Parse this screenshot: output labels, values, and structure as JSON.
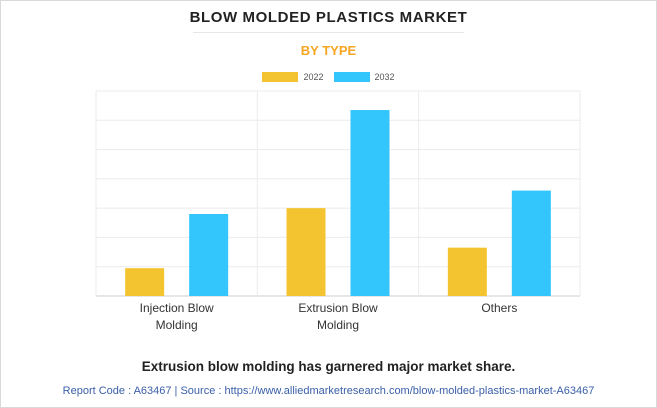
{
  "chart_data": {
    "type": "bar",
    "title": "BLOW MOLDED PLASTICS MARKET",
    "subtitle": "BY TYPE",
    "categories": [
      "Injection Blow Molding",
      "Extrusion Blow Molding",
      "Others"
    ],
    "category_lines": [
      [
        "Injection Blow",
        "Molding"
      ],
      [
        "Extrusion Blow",
        "Molding"
      ],
      [
        "Others"
      ]
    ],
    "series": [
      {
        "name": "2022",
        "color": "#f4c430",
        "values": [
          0.95,
          3.0,
          1.65
        ]
      },
      {
        "name": "2032",
        "color": "#33c6fc",
        "values": [
          2.8,
          6.35,
          3.6
        ]
      }
    ],
    "ylim": [
      0,
      7
    ],
    "grid": true,
    "legend_position": "top-center",
    "xlabel": "",
    "ylabel": ""
  },
  "caption": "Extrusion blow molding has garnered major market share.",
  "footer": "Report Code : A63467  |  Source : https://www.alliedmarketresearch.com/blow-molded-plastics-market-A63467"
}
